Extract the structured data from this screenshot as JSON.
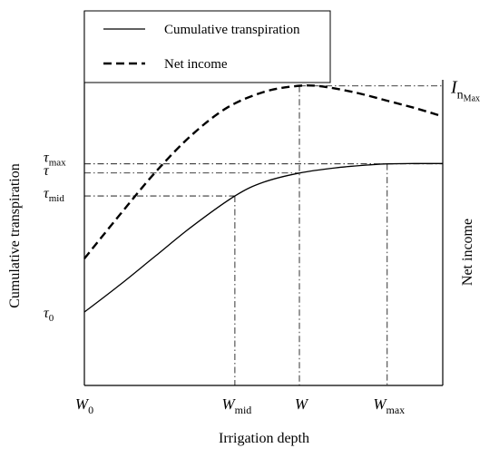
{
  "chart_data": {
    "type": "line",
    "xlabel": "Irrigation depth",
    "ylabel_left": "Cumulative transpiration",
    "ylabel_right": "Net income",
    "legend": {
      "placement": "top-left",
      "entries": [
        {
          "label": "Cumulative transpiration",
          "style": "solid"
        },
        {
          "label": "Net income",
          "style": "dashed"
        }
      ]
    },
    "x_ticks": [
      {
        "base": "W",
        "sub": "0"
      },
      {
        "base": "W",
        "sub": "mid"
      },
      {
        "base": "W",
        "sub": ""
      },
      {
        "base": "W",
        "sub": "max"
      }
    ],
    "y_ticks": [
      {
        "base": "τ",
        "sub": "max"
      },
      {
        "base": "τ",
        "sub": ""
      },
      {
        "base": "τ",
        "sub": "mid"
      },
      {
        "base": "τ",
        "sub": "0"
      }
    ],
    "right_marker": {
      "base": "I",
      "sub": "n",
      "subsub": "Max"
    },
    "xlim": [
      0,
      1
    ],
    "ylim": [
      0,
      1
    ],
    "key_x": {
      "W0": 0.0,
      "Wmid": 0.42,
      "W": 0.6,
      "Wmax": 0.845,
      "end": 1.0
    },
    "key_y": {
      "tau0": 0.24,
      "tau_mid": 0.62,
      "tau": 0.695,
      "tau_max": 0.725,
      "In_max": 0.98
    },
    "series": [
      {
        "name": "Cumulative transpiration",
        "style": "solid",
        "color": "#000000",
        "points": [
          [
            0.0,
            0.24
          ],
          [
            0.1,
            0.33
          ],
          [
            0.2,
            0.425
          ],
          [
            0.3,
            0.52
          ],
          [
            0.42,
            0.62
          ],
          [
            0.5,
            0.665
          ],
          [
            0.6,
            0.695
          ],
          [
            0.7,
            0.712
          ],
          [
            0.8,
            0.722
          ],
          [
            0.845,
            0.725
          ],
          [
            0.92,
            0.726
          ],
          [
            1.0,
            0.726
          ]
        ]
      },
      {
        "name": "Net income",
        "style": "dashed",
        "color": "#000000",
        "points": [
          [
            0.0,
            0.415
          ],
          [
            0.1,
            0.56
          ],
          [
            0.2,
            0.7
          ],
          [
            0.3,
            0.82
          ],
          [
            0.4,
            0.91
          ],
          [
            0.5,
            0.96
          ],
          [
            0.58,
            0.978
          ],
          [
            0.65,
            0.98
          ],
          [
            0.75,
            0.96
          ],
          [
            0.85,
            0.93
          ],
          [
            0.93,
            0.905
          ],
          [
            1.0,
            0.88
          ]
        ]
      }
    ],
    "guides_vertical": [
      0.42,
      0.6,
      0.845
    ],
    "guides_horizontal": [
      0.62,
      0.695,
      0.725,
      0.98
    ],
    "grid": false
  }
}
